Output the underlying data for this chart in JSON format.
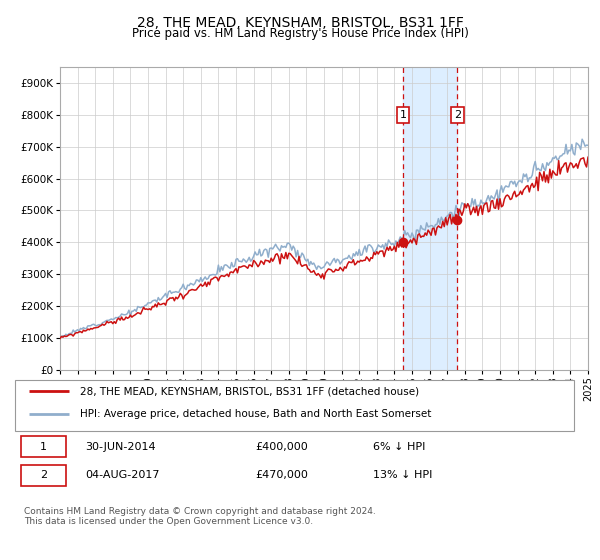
{
  "title": "28, THE MEAD, KEYNSHAM, BRISTOL, BS31 1FF",
  "subtitle": "Price paid vs. HM Land Registry's House Price Index (HPI)",
  "ylim": [
    0,
    950000
  ],
  "yticks": [
    0,
    100000,
    200000,
    300000,
    400000,
    500000,
    600000,
    700000,
    800000,
    900000
  ],
  "ytick_labels": [
    "£0",
    "£100K",
    "£200K",
    "£300K",
    "£400K",
    "£500K",
    "£600K",
    "£700K",
    "£800K",
    "£900K"
  ],
  "hpi_color": "#90aecc",
  "price_color": "#cc1111",
  "sale1_date_idx": 234,
  "sale1_price": 400000,
  "sale1_date_str": "30-JUN-2014",
  "sale1_pct": "6%",
  "sale2_date_idx": 271,
  "sale2_price": 470000,
  "sale2_date_str": "04-AUG-2017",
  "sale2_pct": "13%",
  "legend1": "28, THE MEAD, KEYNSHAM, BRISTOL, BS31 1FF (detached house)",
  "legend2": "HPI: Average price, detached house, Bath and North East Somerset",
  "footnote": "Contains HM Land Registry data © Crown copyright and database right 2024.\nThis data is licensed under the Open Government Licence v3.0.",
  "bg_color": "#ffffff",
  "grid_color": "#cccccc",
  "shaded_color": "#ddeeff",
  "box_color": "#cc1111",
  "n_months": 361,
  "start_year": 1995
}
